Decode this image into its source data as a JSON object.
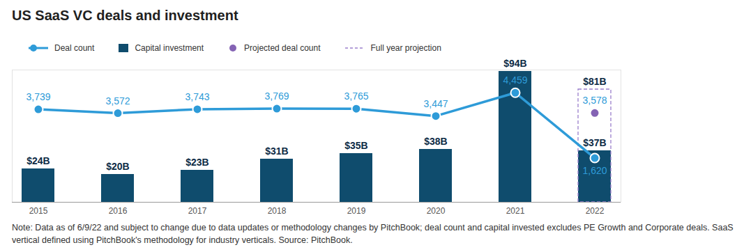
{
  "chart_data": {
    "type": "bar",
    "title": "US SaaS VC deals and investment",
    "caption": "Note: Data as of 6/9/22 and subject to change due to data updates or methodology changes by PitchBook; deal count and capital invested excludes PE Growth and Corporate deals. SaaS vertical defined using PitchBook's methodology for industry verticals. Source: PitchBook.",
    "categories": [
      "2015",
      "2016",
      "2017",
      "2018",
      "2019",
      "2020",
      "2021",
      "2022"
    ],
    "ylim": [
      0,
      95
    ],
    "yticks": [],
    "y2lim": [
      -300,
      5450
    ],
    "y2ticks": [],
    "tick_labels": "x",
    "data_labels": true,
    "legend": "top left",
    "series": [
      {
        "name": "Deal count",
        "type": "line",
        "axis": "y2",
        "color": "#2e9bd8",
        "marker": "circle",
        "values": [
          3739,
          3572,
          3743,
          3769,
          3765,
          3447,
          4459,
          1620
        ],
        "value_labels": [
          "3,739",
          "3,572",
          "3,743",
          "3,769",
          "3,765",
          "3,447",
          "4,459",
          "1,620"
        ]
      },
      {
        "name": "Capital investment",
        "type": "bar",
        "color": "#0f4c6d",
        "values": [
          24,
          20,
          23,
          31,
          35,
          38,
          94,
          37
        ],
        "value_labels": [
          "$24B",
          "$20B",
          "$23B",
          "$31B",
          "$35B",
          "$38B",
          "$94B",
          "$37B"
        ]
      },
      {
        "name": "Projected deal count",
        "type": "scatter",
        "axis": "y2",
        "color": "#8463b4",
        "marker": "circle",
        "values": [
          null,
          null,
          null,
          null,
          null,
          null,
          null,
          3578
        ],
        "value_labels": [
          null,
          null,
          null,
          null,
          null,
          null,
          null,
          "3,578"
        ]
      },
      {
        "name": "Full year projection",
        "type": "bar",
        "color": "#9a7fcc",
        "line_style": "dashed",
        "values": [
          null,
          null,
          null,
          null,
          null,
          null,
          null,
          81
        ],
        "value_labels": [
          null,
          null,
          null,
          null,
          null,
          null,
          null,
          "$81B"
        ]
      }
    ]
  }
}
